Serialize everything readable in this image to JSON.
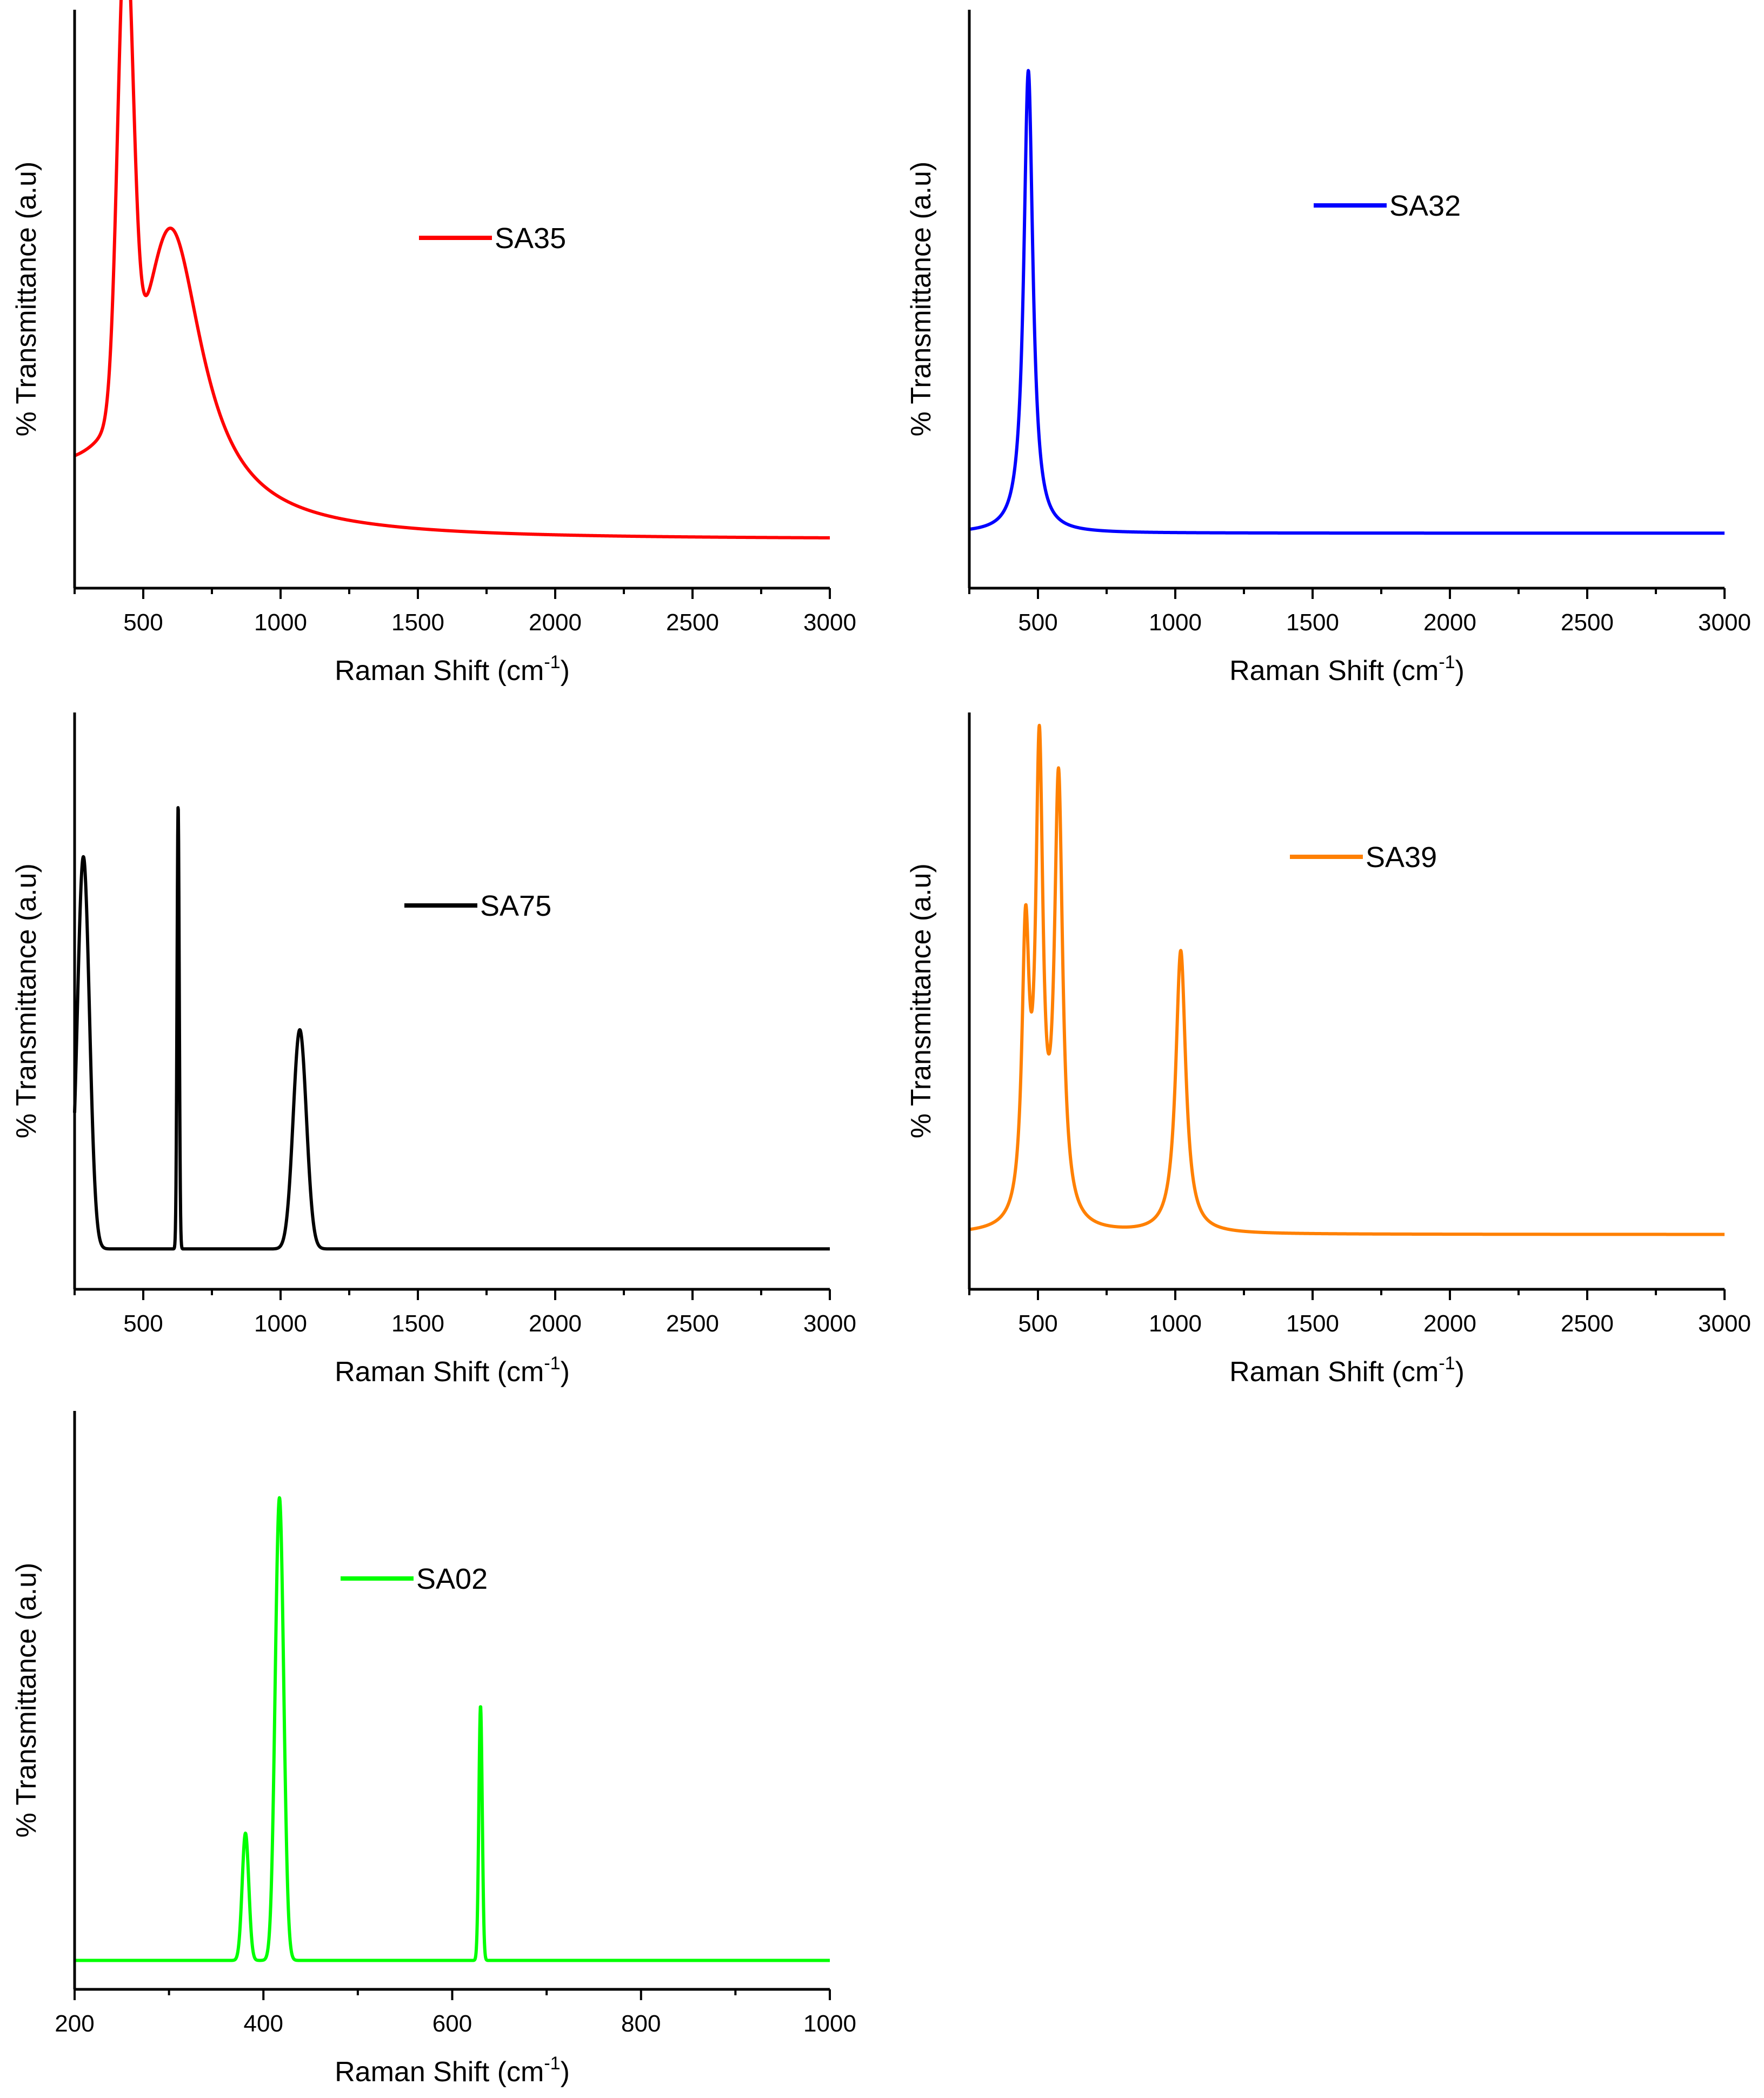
{
  "chart_data": [
    {
      "id": "sa35",
      "type": "line",
      "color": "#ff0000",
      "legend": "SA35",
      "xlabel": "Raman Shift (cm",
      "xlabel_sup": "-1",
      "xlabel_close": ")",
      "ylabel": "% Transmittance (a.u)",
      "xlim": [
        250,
        3000
      ],
      "ylim": [
        0,
        1
      ],
      "xticks": [
        500,
        1000,
        1500,
        2000,
        2500,
        3000
      ],
      "xtick_labels": [
        "500",
        "1000",
        "1500",
        "2000",
        "2500",
        "3000"
      ],
      "baseline": 0.085,
      "tail": {
        "start": 250,
        "start_value": 0.16,
        "floor": 0.085
      },
      "peaks": [
        {
          "center": 435,
          "height": 0.81,
          "width": 28,
          "shape": "gaussian"
        },
        {
          "center": 600,
          "height": 0.5,
          "width": 140,
          "shape": "lorentzian"
        }
      ]
    },
    {
      "id": "sa32",
      "type": "line",
      "color": "#0000ff",
      "legend": "SA32",
      "xlabel": "Raman Shift (cm",
      "xlabel_sup": "-1",
      "xlabel_close": ")",
      "ylabel": "% Transmittance (a.u)",
      "xlim": [
        250,
        3000
      ],
      "ylim": [
        0,
        1
      ],
      "xticks": [
        500,
        1000,
        1500,
        2000,
        2500,
        3000
      ],
      "xtick_labels": [
        "500",
        "1000",
        "1500",
        "2000",
        "2500",
        "3000"
      ],
      "baseline": 0.095,
      "peaks": [
        {
          "center": 465,
          "height": 0.8,
          "width": 20,
          "shape": "lorentzian"
        }
      ]
    },
    {
      "id": "sa75",
      "type": "line",
      "color": "#000000",
      "legend": "SA75",
      "xlabel": "Raman Shift (cm",
      "xlabel_sup": "-1",
      "xlabel_close": ")",
      "ylabel": "% Transmittance (a.u)",
      "xlim": [
        250,
        3000
      ],
      "ylim": [
        0,
        1
      ],
      "xticks": [
        500,
        1000,
        1500,
        2000,
        2500,
        3000
      ],
      "xtick_labels": [
        "500",
        "1000",
        "1500",
        "2000",
        "2500",
        "3000"
      ],
      "baseline": 0.07,
      "peaks": [
        {
          "center": 282,
          "height": 0.68,
          "width": 22,
          "shape": "gaussian"
        },
        {
          "center": 627,
          "height": 0.77,
          "width": 4,
          "shape": "gaussian"
        },
        {
          "center": 1070,
          "height": 0.38,
          "width": 24,
          "shape": "gaussian"
        }
      ]
    },
    {
      "id": "sa39",
      "type": "line",
      "color": "#ff8000",
      "legend": "SA39",
      "xlabel": "Raman Shift (cm",
      "xlabel_sup": "-1",
      "xlabel_close": ")",
      "ylabel": "% Transmittance (a.u)",
      "xlim": [
        250,
        3000
      ],
      "ylim": [
        0,
        1
      ],
      "xticks": [
        500,
        1000,
        1500,
        2000,
        2500,
        3000
      ],
      "xtick_labels": [
        "500",
        "1000",
        "1500",
        "2000",
        "2500",
        "3000"
      ],
      "baseline": 0.095,
      "peaks": [
        {
          "center": 455,
          "height": 0.48,
          "width": 16,
          "shape": "lorentzian"
        },
        {
          "center": 505,
          "height": 0.79,
          "width": 16,
          "shape": "lorentzian"
        },
        {
          "center": 575,
          "height": 0.76,
          "width": 18,
          "shape": "lorentzian"
        },
        {
          "center": 1020,
          "height": 0.49,
          "width": 22,
          "shape": "lorentzian"
        }
      ]
    },
    {
      "id": "sa02",
      "type": "line",
      "color": "#00ff00",
      "legend": "SA02",
      "xlabel": "Raman Shift (cm",
      "xlabel_sup": "-1",
      "xlabel_close": ")",
      "ylabel": "% Transmittance (a.u)",
      "xlim": [
        200,
        1000
      ],
      "ylim": [
        0,
        1
      ],
      "xticks": [
        200,
        400,
        600,
        800,
        1000
      ],
      "xtick_labels": [
        "200",
        "400",
        "600",
        "800",
        "1000"
      ],
      "minor_xticks": [
        300,
        500,
        700,
        900
      ],
      "baseline": 0.05,
      "peaks": [
        {
          "center": 381,
          "height": 0.22,
          "width": 3.5,
          "shape": "gaussian"
        },
        {
          "center": 417,
          "height": 0.8,
          "width": 4.5,
          "shape": "gaussian"
        },
        {
          "center": 630,
          "height": 0.44,
          "width": 1.8,
          "shape": "gaussian"
        }
      ]
    }
  ]
}
